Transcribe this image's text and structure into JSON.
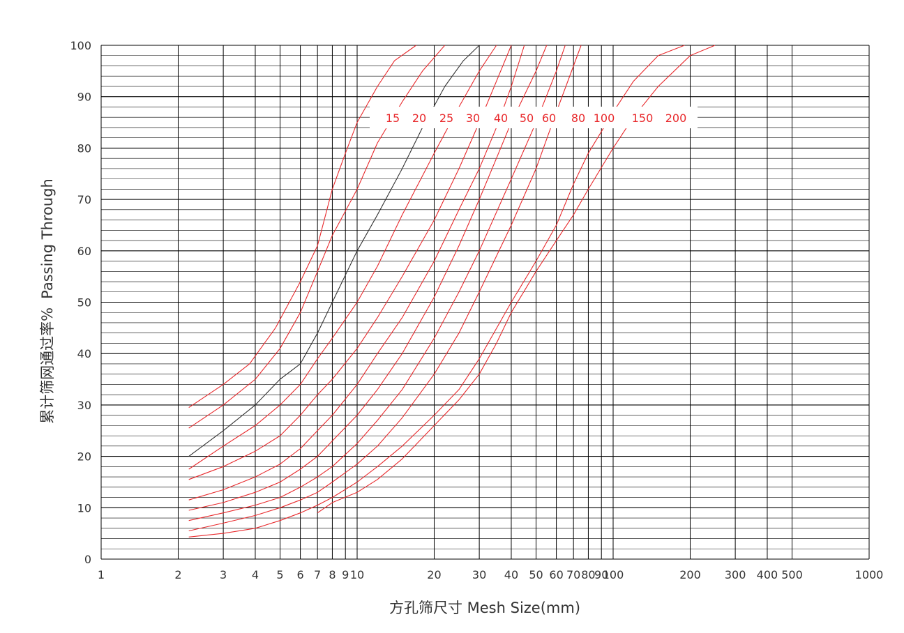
{
  "chart_data": {
    "type": "line",
    "title": "",
    "xlabel": "方孔筛尺寸 Mesh Size(mm)",
    "ylabel_cn": "累计筛网通过率%",
    "ylabel_en": "Passing Through",
    "x_scale": "log",
    "xlim": [
      1,
      1000
    ],
    "ylim": [
      0,
      100
    ],
    "grid": true,
    "x_ticks": [
      1,
      2,
      3,
      4,
      5,
      6,
      7,
      8,
      9,
      10,
      20,
      30,
      40,
      50,
      60,
      70,
      80,
      90,
      100,
      200,
      300,
      400,
      500,
      1000
    ],
    "y_ticks": [
      0,
      10,
      20,
      30,
      40,
      50,
      60,
      70,
      80,
      90,
      100
    ],
    "colors": {
      "series": "#e8282b",
      "highlight": "#333333",
      "grid": "#000000",
      "axis_text": "#333333"
    },
    "series": [
      {
        "name": "15",
        "color": "#e8282b",
        "x": [
          2.2,
          3,
          3.8,
          4.8,
          6,
          7,
          8,
          9,
          10,
          12,
          14,
          17
        ],
        "y": [
          29.5,
          34,
          38,
          45,
          54,
          61,
          72,
          79,
          85,
          92,
          97,
          100
        ]
      },
      {
        "name": "20",
        "color": "#e8282b",
        "x": [
          2.2,
          3,
          4,
          5,
          6,
          7,
          8,
          10,
          12,
          15,
          18,
          22
        ],
        "y": [
          25.5,
          30,
          35,
          41,
          48,
          56,
          63,
          72,
          81,
          89,
          95,
          100
        ]
      },
      {
        "name": "25",
        "color": "#333333",
        "x": [
          2.2,
          3,
          4,
          5,
          6,
          7,
          8,
          10,
          12,
          15,
          18,
          22,
          26,
          30
        ],
        "y": [
          20,
          25,
          30,
          35,
          38,
          44,
          50,
          60,
          67,
          76,
          84,
          92,
          97,
          100
        ]
      },
      {
        "name": "30",
        "color": "#e8282b",
        "x": [
          2.2,
          3,
          4,
          5,
          6,
          7,
          8,
          10,
          12,
          15,
          20,
          25,
          30,
          35
        ],
        "y": [
          17.5,
          22,
          26,
          30,
          34,
          39,
          43,
          50,
          57,
          67,
          79,
          88,
          95,
          100
        ]
      },
      {
        "name": "40",
        "color": "#e8282b",
        "x": [
          2.2,
          3,
          4,
          5,
          6,
          7,
          8,
          10,
          12,
          15,
          20,
          25,
          30,
          35,
          40
        ],
        "y": [
          15.5,
          18,
          21,
          24,
          28,
          32,
          35,
          41,
          47,
          55,
          66,
          76,
          85,
          93,
          100
        ]
      },
      {
        "name": "50",
        "color": "#e8282b",
        "x": [
          2.2,
          3,
          4,
          5,
          6,
          7,
          8,
          10,
          12,
          15,
          20,
          25,
          30,
          35,
          40,
          45
        ],
        "y": [
          11.5,
          13.5,
          16,
          18.5,
          21.5,
          25,
          28,
          34,
          40,
          47,
          58,
          68,
          76,
          84,
          92,
          100
        ]
      },
      {
        "name": "60",
        "color": "#e8282b",
        "x": [
          2.2,
          3,
          4,
          5,
          6,
          7,
          8,
          10,
          12,
          15,
          20,
          25,
          30,
          35,
          40,
          50,
          55
        ],
        "y": [
          9.5,
          11,
          13,
          15,
          17.5,
          20,
          23,
          28,
          33,
          40,
          51,
          61,
          70,
          78,
          85,
          95,
          100
        ]
      },
      {
        "name": "80",
        "color": "#e8282b",
        "x": [
          2.2,
          3,
          4,
          5,
          6,
          7,
          8,
          10,
          12,
          15,
          20,
          25,
          30,
          40,
          50,
          60,
          65
        ],
        "y": [
          7.5,
          9,
          10.5,
          12,
          14,
          16,
          18,
          22.5,
          27,
          33,
          43,
          52,
          60,
          74,
          85,
          95,
          100
        ]
      },
      {
        "name": "100",
        "color": "#e8282b",
        "x": [
          2.2,
          3,
          4,
          5,
          6,
          7,
          8,
          10,
          12,
          15,
          20,
          25,
          30,
          40,
          50,
          60,
          70,
          75
        ],
        "y": [
          5.5,
          7,
          8.5,
          10,
          11.5,
          13,
          15,
          18.5,
          22,
          27.5,
          36,
          44,
          52,
          65,
          76,
          87,
          96,
          100
        ]
      },
      {
        "name": "150",
        "color": "#e8282b",
        "x": [
          2.2,
          3,
          4,
          5,
          6,
          7,
          8,
          10,
          12,
          15,
          20,
          25,
          30,
          40,
          50,
          60,
          70,
          80,
          100,
          120,
          150,
          190
        ],
        "y": [
          4.3,
          5,
          6,
          7.5,
          9,
          10.5,
          12,
          15,
          18,
          22,
          28,
          33,
          39,
          50,
          58,
          65,
          73,
          79,
          87,
          93,
          98,
          100
        ]
      },
      {
        "name": "200",
        "color": "#e8282b",
        "x": [
          7,
          8,
          10,
          12,
          15,
          20,
          25,
          30,
          35,
          40,
          50,
          60,
          70,
          80,
          100,
          120,
          150,
          200,
          250
        ],
        "y": [
          9,
          11,
          13,
          15.5,
          19.5,
          26,
          31,
          36,
          42,
          48,
          56,
          62,
          67,
          72,
          80,
          86,
          92,
          98,
          100
        ]
      }
    ]
  }
}
